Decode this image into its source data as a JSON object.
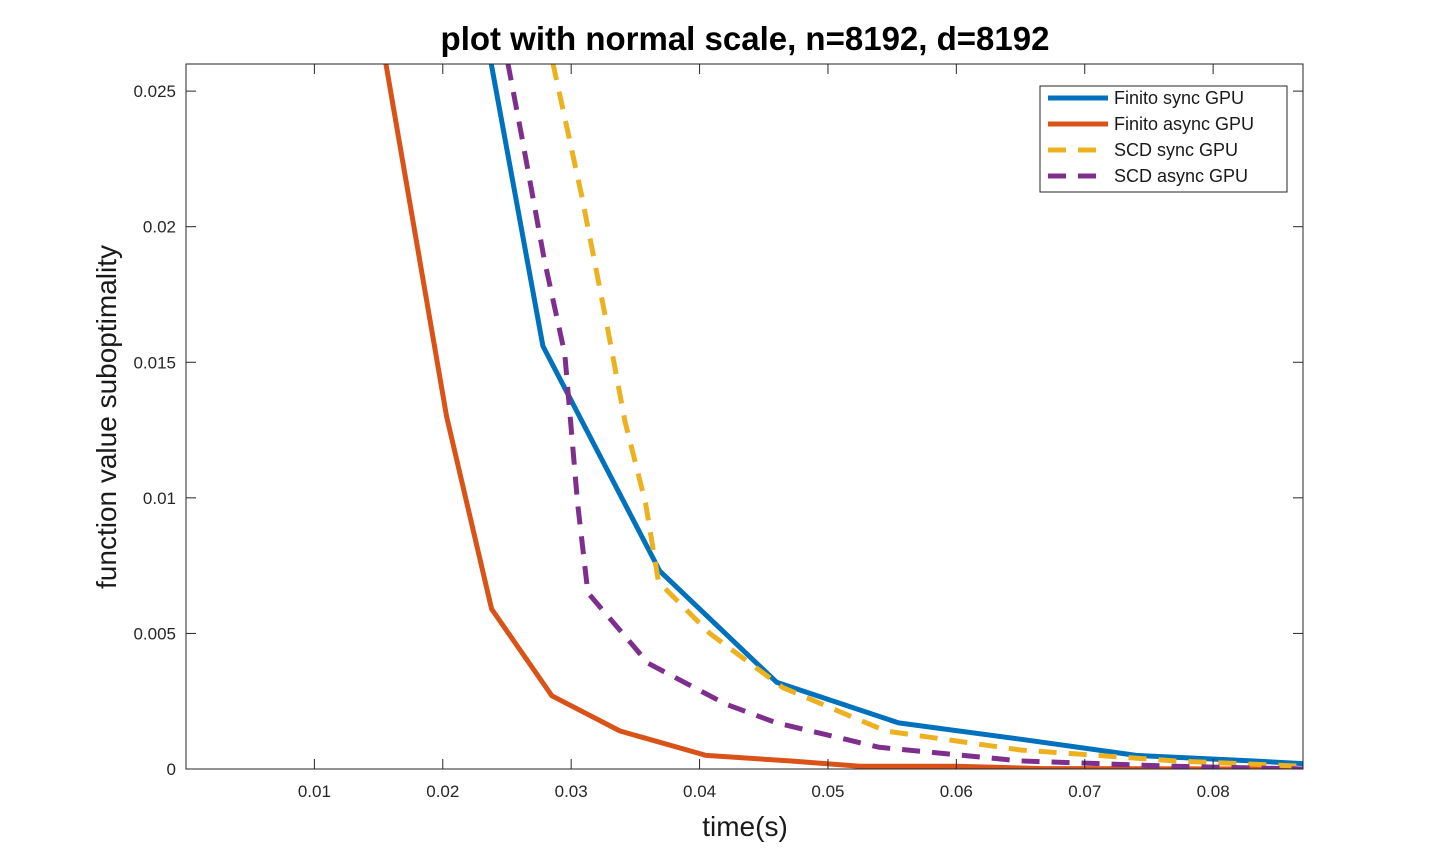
{
  "chart_data": {
    "type": "line",
    "title": "plot with normal scale, n=8192, d=8192",
    "xlabel": "time(s)",
    "ylabel": "function value suboptimality",
    "xlim": [
      0,
      0.087
    ],
    "ylim": [
      0,
      0.026
    ],
    "xticks": [
      0.01,
      0.02,
      0.03,
      0.04,
      0.05,
      0.06,
      0.07,
      0.08
    ],
    "xtick_labels": [
      "0.01",
      "0.02",
      "0.03",
      "0.04",
      "0.05",
      "0.06",
      "0.07",
      "0.08"
    ],
    "yticks": [
      0,
      0.005,
      0.01,
      0.015,
      0.02,
      0.025
    ],
    "ytick_labels": [
      "0",
      "0.005",
      "0.01",
      "0.015",
      "0.02",
      "0.025"
    ],
    "grid": false,
    "legend_position": "top-right",
    "series": [
      {
        "name": "Finito  sync GPU",
        "color": "#0072BD",
        "dash": "solid",
        "points": [
          [
            0.0213,
            0.036
          ],
          [
            0.0237,
            0.0262
          ],
          [
            0.0278,
            0.0156
          ],
          [
            0.0369,
            0.0073
          ],
          [
            0.046,
            0.0032
          ],
          [
            0.0555,
            0.0017
          ],
          [
            0.065,
            0.0011
          ],
          [
            0.074,
            0.0005
          ],
          [
            0.083,
            0.0003
          ],
          [
            0.087,
            0.0002
          ]
        ]
      },
      {
        "name": "Finito async GPU",
        "color": "#D95319",
        "dash": "solid",
        "points": [
          [
            0.0125,
            0.036
          ],
          [
            0.0155,
            0.0262
          ],
          [
            0.0203,
            0.013
          ],
          [
            0.0238,
            0.0059
          ],
          [
            0.0285,
            0.0027
          ],
          [
            0.0338,
            0.0014
          ],
          [
            0.0405,
            0.0005
          ],
          [
            0.047,
            0.0003
          ],
          [
            0.0525,
            0.0001
          ],
          [
            0.06,
            0.0001
          ],
          [
            0.0665,
            2e-05
          ],
          [
            0.087,
            0.0
          ]
        ]
      },
      {
        "name": "SCD   sync GPU",
        "color": "#EDB120",
        "dash": "dashed",
        "points": [
          [
            0.0275,
            0.036
          ],
          [
            0.0285,
            0.0262
          ],
          [
            0.0308,
            0.0212
          ],
          [
            0.0327,
            0.0166
          ],
          [
            0.0342,
            0.0128
          ],
          [
            0.0358,
            0.0098
          ],
          [
            0.0368,
            0.0069
          ],
          [
            0.0408,
            0.005
          ],
          [
            0.0465,
            0.003
          ],
          [
            0.0545,
            0.0014
          ],
          [
            0.065,
            0.0007
          ],
          [
            0.077,
            0.0003
          ],
          [
            0.087,
            0.0001
          ]
        ]
      },
      {
        "name": "SCD  async GPU",
        "color": "#7E2F8E",
        "dash": "dashed",
        "points": [
          [
            0.0244,
            0.036
          ],
          [
            0.025,
            0.0262
          ],
          [
            0.0262,
            0.0232
          ],
          [
            0.0279,
            0.0188
          ],
          [
            0.0295,
            0.0153
          ],
          [
            0.0305,
            0.0098
          ],
          [
            0.0313,
            0.0065
          ],
          [
            0.036,
            0.0039
          ],
          [
            0.042,
            0.0024
          ],
          [
            0.046,
            0.0017
          ],
          [
            0.054,
            0.0008
          ],
          [
            0.065,
            0.0003
          ],
          [
            0.077,
            0.0001
          ],
          [
            0.087,
            0.0
          ]
        ]
      }
    ]
  }
}
